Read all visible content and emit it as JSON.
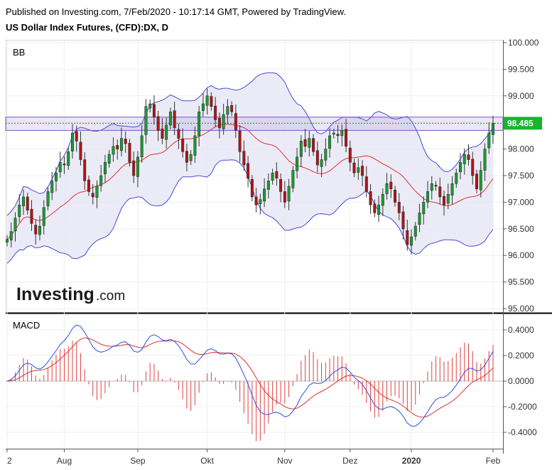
{
  "header": {
    "published": "Published on Investing.com, 7/Feb/2020 - 10:17:14 GMT, Powered by TradingView.",
    "instrument": "US Dollar Index Futures, (CFD):DX, D"
  },
  "logo": {
    "word": "Investing",
    "suffix": ".com"
  },
  "colors": {
    "up": "#1a9c2f",
    "down": "#b01515",
    "band": "#4a4ad8",
    "band_fill": "#e6e6f5",
    "basis": "#e03030",
    "macd": "#2b50e0",
    "signal": "#e03030",
    "hist": "#e04040",
    "zone": "#7e57c2",
    "price_tag": "#18b52d"
  },
  "chart_data": [
    {
      "type": "candlestick",
      "pane_label": "BB",
      "ylim": [
        95.0,
        100.0
      ],
      "yticks": [
        "100.000",
        "99.500",
        "99.000",
        "98.500",
        "98.000",
        "97.500",
        "97.000",
        "96.500",
        "96.000",
        "95.500",
        "95.000"
      ],
      "xticks": [
        "2",
        "Aug",
        "Sep",
        "Okt",
        "Nov",
        "Dez",
        "2020",
        "Feb"
      ],
      "last_price": "98.485",
      "zone": [
        98.35,
        98.6
      ],
      "closes": [
        96.3,
        96.45,
        96.7,
        96.95,
        97.1,
        96.85,
        96.6,
        96.4,
        96.55,
        96.9,
        97.2,
        97.4,
        97.55,
        97.75,
        97.7,
        97.95,
        98.3,
        98.15,
        97.8,
        97.4,
        97.2,
        97.1,
        97.3,
        97.5,
        97.75,
        97.9,
        98.05,
        98.0,
        98.2,
        98.1,
        97.75,
        97.5,
        97.85,
        98.25,
        98.8,
        98.85,
        98.6,
        98.35,
        98.2,
        98.45,
        98.7,
        98.4,
        98.2,
        97.95,
        97.75,
        97.9,
        98.25,
        98.7,
        98.85,
        99.0,
        98.8,
        98.55,
        98.4,
        98.65,
        98.8,
        98.7,
        98.35,
        97.95,
        97.7,
        97.45,
        97.1,
        96.95,
        97.05,
        97.25,
        97.4,
        97.55,
        97.45,
        97.2,
        97.0,
        97.3,
        97.6,
        97.85,
        98.15,
        98.05,
        98.2,
        97.95,
        97.7,
        97.8,
        98.0,
        98.25,
        98.3,
        98.25,
        98.35,
        98.05,
        97.75,
        97.55,
        97.65,
        97.5,
        97.2,
        96.95,
        96.8,
        96.95,
        97.15,
        97.35,
        97.25,
        97.0,
        96.8,
        96.5,
        96.2,
        96.35,
        96.55,
        96.8,
        97.0,
        97.2,
        97.35,
        97.3,
        97.1,
        96.95,
        97.15,
        97.35,
        97.55,
        97.75,
        97.9,
        97.8,
        97.5,
        97.25,
        97.6,
        98.0,
        98.3,
        98.485
      ]
    },
    {
      "type": "macd",
      "pane_label": "MACD",
      "ylim": [
        -0.45,
        0.45
      ],
      "yticks": [
        "0.4000",
        "0.2000",
        "0.0000",
        "-0.2000",
        "-0.4000"
      ]
    }
  ]
}
